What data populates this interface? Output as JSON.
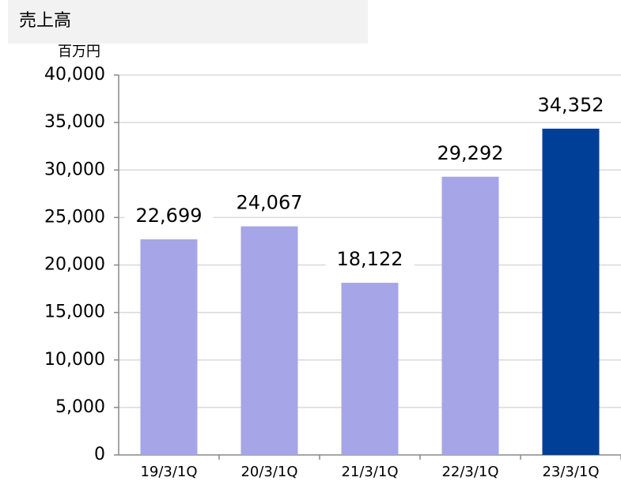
{
  "chart_data": {
    "type": "bar",
    "title": "売上高",
    "y_unit": "百万円",
    "categories": [
      "19/3/1Q",
      "20/3/1Q",
      "21/3/1Q",
      "22/3/1Q",
      "23/3/1Q"
    ],
    "values": [
      22699,
      24067,
      18122,
      29292,
      34352
    ],
    "value_labels": [
      "22,699",
      "24,067",
      "18,122",
      "29,292",
      "34,352"
    ],
    "colors": [
      "#a5a5e8",
      "#a5a5e8",
      "#a5a5e8",
      "#a5a5e8",
      "#003f98"
    ],
    "ylim": [
      0,
      40000
    ],
    "yticks": [
      0,
      {
        "value": 5000,
        "label": "5,000"
      },
      {
        "value": 10000,
        "label": "10,000"
      },
      {
        "value": 15000,
        "label": "15,000"
      },
      {
        "value": 20000,
        "label": "20,000"
      },
      {
        "value": 25000,
        "label": "25,000"
      },
      {
        "value": 30000,
        "label": "30,000"
      },
      {
        "value": 35000,
        "label": "35,000"
      },
      {
        "value": 40000,
        "label": "40,000"
      }
    ],
    "grid": true
  }
}
